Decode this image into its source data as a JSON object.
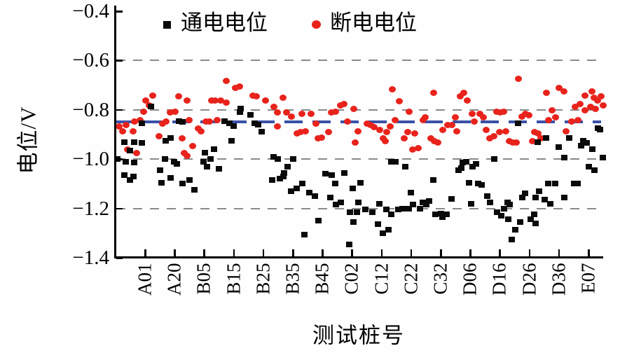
{
  "page": {
    "background": "#fefefe"
  },
  "chart_data": {
    "type": "scatter",
    "title": "",
    "xlabel": "测试桩号",
    "ylabel": "电位/V",
    "ylim": [
      -1.4,
      -0.4
    ],
    "grid": "horizontal-dashed",
    "legend_position": "top-inside",
    "y_ticks": [
      {
        "value": -0.4,
        "label": "−0.4"
      },
      {
        "value": -0.6,
        "label": "−0.6"
      },
      {
        "value": -0.8,
        "label": "−0.8"
      },
      {
        "value": -1.0,
        "label": "−1.0"
      },
      {
        "value": -1.2,
        "label": "−1.2"
      },
      {
        "value": -1.4,
        "label": "−1.4"
      }
    ],
    "x_categories": [
      "A01",
      "A20",
      "B05",
      "B15",
      "B25",
      "B35",
      "B45",
      "C02",
      "C12",
      "C22",
      "C32",
      "D06",
      "D16",
      "D26",
      "D36",
      "E07"
    ],
    "gridlines": {
      "values": [
        -0.6,
        -0.8,
        -1.0,
        -1.2
      ],
      "color": "#8a8a8a",
      "style": "dashed"
    },
    "reference_line": {
      "value": -0.85,
      "color": "#3a51a8",
      "style": "dashed"
    },
    "legend": [
      {
        "label": "通电电位",
        "marker": "square",
        "color": "#0a0a0a"
      },
      {
        "label": "断电电位",
        "marker": "circle",
        "color": "#e8231c"
      }
    ],
    "x_unit_note": "x given in tick-index units, ticks at integers 0..15",
    "series": [
      {
        "name": "通电电位",
        "marker": "square",
        "color": "#0a0a0a",
        "points": [
          [
            -0.93,
            -1.0
          ],
          [
            -0.69,
            -0.93
          ],
          [
            -0.36,
            -0.93
          ],
          [
            -0.1,
            -0.935
          ],
          [
            -0.52,
            -0.965
          ],
          [
            -0.64,
            -1.01
          ],
          [
            -0.36,
            -1.015
          ],
          [
            -0.69,
            -1.065
          ],
          [
            -0.4,
            -1.07
          ],
          [
            -0.52,
            -1.085
          ],
          [
            0.5,
            -1.045
          ],
          [
            0.67,
            -1.0
          ],
          [
            0.98,
            -1.01
          ],
          [
            1.07,
            -1.02
          ],
          [
            0.55,
            -1.095
          ],
          [
            0.86,
            -1.075
          ],
          [
            1.26,
            -1.1
          ],
          [
            1.5,
            -1.085
          ],
          [
            1.67,
            -1.125
          ],
          [
            0.19,
            -0.785
          ],
          [
            -0.1,
            -0.855
          ],
          [
            0.71,
            -0.925
          ],
          [
            0.86,
            -0.915
          ],
          [
            1.14,
            -0.845
          ],
          [
            1.26,
            -0.85
          ],
          [
            2.69,
            -0.845
          ],
          [
            2.86,
            -0.855
          ],
          [
            3.0,
            -0.865
          ],
          [
            3.24,
            -0.795
          ],
          [
            3.21,
            -0.81
          ],
          [
            3.57,
            -0.82
          ],
          [
            3.71,
            -0.855
          ],
          [
            3.83,
            -0.86
          ],
          [
            3.95,
            -0.89
          ],
          [
            2.93,
            -0.925
          ],
          [
            2.33,
            -0.96
          ],
          [
            2.02,
            -0.975
          ],
          [
            2.21,
            -1.0
          ],
          [
            1.98,
            -1.01
          ],
          [
            2.1,
            -1.03
          ],
          [
            2.5,
            -1.04
          ],
          [
            4.36,
            -0.99
          ],
          [
            4.48,
            -1.0
          ],
          [
            4.29,
            -1.085
          ],
          [
            4.55,
            -1.08
          ],
          [
            5.02,
            -1.0
          ],
          [
            4.83,
            -1.03
          ],
          [
            4.71,
            -1.055
          ],
          [
            4.67,
            -1.07
          ],
          [
            5.31,
            -1.1
          ],
          [
            4.95,
            -1.13
          ],
          [
            5.14,
            -1.12
          ],
          [
            5.55,
            -1.135
          ],
          [
            5.74,
            -1.15
          ],
          [
            6.1,
            -1.06
          ],
          [
            6.31,
            -1.065
          ],
          [
            6.26,
            -1.155
          ],
          [
            6.43,
            -1.1
          ],
          [
            6.62,
            -1.175
          ],
          [
            6.45,
            -1.185
          ],
          [
            6.74,
            -1.055
          ],
          [
            6.93,
            -1.215
          ],
          [
            7.17,
            -1.215
          ],
          [
            5.86,
            -1.25
          ],
          [
            7.05,
            -1.255
          ],
          [
            5.38,
            -1.305
          ],
          [
            6.9,
            -1.345
          ],
          [
            7.21,
            -1.175
          ],
          [
            7.02,
            -1.12
          ],
          [
            7.29,
            -1.095
          ],
          [
            7.93,
            -1.18
          ],
          [
            7.69,
            -1.215
          ],
          [
            8.17,
            -1.205
          ],
          [
            7.88,
            -1.265
          ],
          [
            8.24,
            -1.285
          ],
          [
            8.05,
            -1.3
          ],
          [
            8.33,
            -1.225
          ],
          [
            8.57,
            -1.205
          ],
          [
            8.71,
            -1.2
          ],
          [
            8.48,
            -1.01
          ],
          [
            8.33,
            -1.01
          ],
          [
            8.81,
            -1.03
          ],
          [
            9.0,
            -1.135
          ],
          [
            8.93,
            -1.2
          ],
          [
            9.07,
            -1.185
          ],
          [
            9.29,
            -1.2
          ],
          [
            9.4,
            -1.175
          ],
          [
            9.52,
            -1.185
          ],
          [
            9.6,
            -1.17
          ],
          [
            9.76,
            -1.085
          ],
          [
            9.83,
            -1.225
          ],
          [
            10.0,
            -1.22
          ],
          [
            10.07,
            -1.235
          ],
          [
            10.19,
            -1.225
          ],
          [
            7.45,
            -1.205
          ],
          [
            10.74,
            -1.015
          ],
          [
            10.86,
            -1.01
          ],
          [
            10.71,
            -1.035
          ],
          [
            10.6,
            -1.045
          ],
          [
            11.07,
            -1.03
          ],
          [
            11.19,
            -1.02
          ],
          [
            11.81,
            -1.0
          ],
          [
            10.95,
            -1.095
          ],
          [
            11.26,
            -1.1
          ],
          [
            11.38,
            -1.105
          ],
          [
            11.57,
            -1.15
          ],
          [
            11.67,
            -1.175
          ],
          [
            11.02,
            -1.18
          ],
          [
            10.36,
            -1.16
          ],
          [
            12.26,
            -1.175
          ],
          [
            12.33,
            -1.185
          ],
          [
            12.14,
            -1.2
          ],
          [
            11.9,
            -1.215
          ],
          [
            12.05,
            -1.23
          ],
          [
            12.29,
            -1.245
          ],
          [
            12.52,
            -1.285
          ],
          [
            12.4,
            -1.325
          ],
          [
            12.69,
            -1.255
          ],
          [
            12.86,
            -1.14
          ],
          [
            12.76,
            -1.155
          ],
          [
            13.05,
            -1.245
          ],
          [
            12.62,
            -0.855
          ],
          [
            13.57,
            -0.915
          ],
          [
            13.29,
            -0.93
          ],
          [
            14.0,
            -0.95
          ],
          [
            14.36,
            -0.915
          ],
          [
            14.19,
            -0.995
          ],
          [
            14.83,
            -0.925
          ],
          [
            14.95,
            -0.935
          ],
          [
            14.76,
            -0.945
          ],
          [
            15.14,
            -0.96
          ],
          [
            15.31,
            -0.875
          ],
          [
            15.38,
            -0.88
          ],
          [
            15.48,
            -0.995
          ],
          [
            15.02,
            -1.03
          ],
          [
            15.19,
            -1.045
          ],
          [
            13.64,
            -1.1
          ],
          [
            13.88,
            -1.1
          ],
          [
            14.52,
            -1.1
          ],
          [
            14.64,
            -1.1
          ],
          [
            13.33,
            -1.13
          ],
          [
            13.21,
            -1.155
          ],
          [
            13.52,
            -1.165
          ],
          [
            13.71,
            -1.18
          ],
          [
            14.19,
            -1.155
          ],
          [
            13.17,
            -1.225
          ],
          [
            13.21,
            -1.26
          ]
        ]
      },
      {
        "name": "断电电位",
        "marker": "circle",
        "color": "#e8231c",
        "points": [
          [
            0.26,
            -0.74
          ],
          [
            0.02,
            -0.76
          ],
          [
            0.14,
            -0.78
          ],
          [
            -0.05,
            -0.805
          ],
          [
            -0.17,
            -0.84
          ],
          [
            -0.36,
            -0.845
          ],
          [
            -0.64,
            -0.86
          ],
          [
            -0.88,
            -0.865
          ],
          [
            -0.76,
            -0.885
          ],
          [
            -0.4,
            -0.885
          ],
          [
            0.48,
            -0.905
          ],
          [
            0.6,
            -0.855
          ],
          [
            0.71,
            -0.845
          ],
          [
            0.86,
            -0.81
          ],
          [
            1.02,
            -0.805
          ],
          [
            1.14,
            -0.745
          ],
          [
            1.43,
            -0.76
          ],
          [
            1.5,
            -0.84
          ],
          [
            1.62,
            -0.945
          ],
          [
            1.26,
            -0.915
          ],
          [
            1.33,
            -0.975
          ],
          [
            1.43,
            -0.985
          ],
          [
            -0.6,
            -0.96
          ],
          [
            -0.29,
            -0.975
          ],
          [
            2.76,
            -0.68
          ],
          [
            3.05,
            -0.71
          ],
          [
            3.21,
            -0.705
          ],
          [
            2.57,
            -0.76
          ],
          [
            2.74,
            -0.77
          ],
          [
            3.64,
            -0.74
          ],
          [
            3.76,
            -0.745
          ],
          [
            4.07,
            -0.76
          ],
          [
            4.36,
            -0.785
          ],
          [
            4.48,
            -0.81
          ],
          [
            2.26,
            -0.76
          ],
          [
            2.38,
            -0.76
          ],
          [
            2.05,
            -0.845
          ],
          [
            2.17,
            -0.845
          ],
          [
            2.45,
            -0.84
          ],
          [
            1.9,
            -0.885
          ],
          [
            1.81,
            -0.875
          ],
          [
            4.48,
            -0.865
          ],
          [
            4.67,
            -0.75
          ],
          [
            4.79,
            -0.81
          ],
          [
            4.95,
            -0.825
          ],
          [
            5.31,
            -0.815
          ],
          [
            5.62,
            -0.815
          ],
          [
            5.26,
            -0.89
          ],
          [
            5.14,
            -0.895
          ],
          [
            5.43,
            -0.885
          ],
          [
            5.79,
            -0.855
          ],
          [
            5.86,
            -0.915
          ],
          [
            5.98,
            -0.91
          ],
          [
            6.21,
            -0.89
          ],
          [
            6.31,
            -0.81
          ],
          [
            6.45,
            -0.805
          ],
          [
            6.62,
            -0.78
          ],
          [
            6.74,
            -0.775
          ],
          [
            7.05,
            -0.795
          ],
          [
            6.86,
            -0.845
          ],
          [
            7.21,
            -0.885
          ],
          [
            7.1,
            -0.93
          ],
          [
            8.36,
            -0.715
          ],
          [
            8.6,
            -0.765
          ],
          [
            8.93,
            -0.805
          ],
          [
            8.45,
            -0.84
          ],
          [
            8.29,
            -0.865
          ],
          [
            8.17,
            -0.89
          ],
          [
            8.05,
            -0.915
          ],
          [
            8.12,
            -0.925
          ],
          [
            7.93,
            -0.88
          ],
          [
            7.76,
            -0.87
          ],
          [
            7.64,
            -0.86
          ],
          [
            7.52,
            -0.855
          ],
          [
            8.76,
            -0.915
          ],
          [
            8.88,
            -0.89
          ],
          [
            9.12,
            -0.895
          ],
          [
            9.05,
            -0.96
          ],
          [
            9.24,
            -0.955
          ],
          [
            9.48,
            -0.83
          ],
          [
            9.4,
            -0.84
          ],
          [
            9.76,
            -0.73
          ],
          [
            9.67,
            -0.915
          ],
          [
            9.79,
            -0.925
          ],
          [
            9.9,
            -0.93
          ],
          [
            10.07,
            -0.88
          ],
          [
            10.24,
            -0.86
          ],
          [
            12.64,
            -0.673
          ],
          [
            10.79,
            -0.73
          ],
          [
            10.9,
            -0.76
          ],
          [
            10.67,
            -0.745
          ],
          [
            11.07,
            -0.815
          ],
          [
            11.33,
            -0.815
          ],
          [
            11.14,
            -0.845
          ],
          [
            11.45,
            -0.83
          ],
          [
            10.5,
            -0.83
          ],
          [
            10.38,
            -0.86
          ],
          [
            10.55,
            -0.885
          ],
          [
            11.55,
            -0.88
          ],
          [
            11.67,
            -0.915
          ],
          [
            11.79,
            -0.905
          ],
          [
            11.9,
            -0.805
          ],
          [
            12.02,
            -0.81
          ],
          [
            12.14,
            -0.805
          ],
          [
            11.98,
            -0.89
          ],
          [
            12.21,
            -0.885
          ],
          [
            12.33,
            -0.925
          ],
          [
            12.45,
            -0.93
          ],
          [
            12.57,
            -0.93
          ],
          [
            12.86,
            -0.815
          ],
          [
            12.98,
            -0.82
          ],
          [
            13.1,
            -0.925
          ],
          [
            12.76,
            -0.825
          ],
          [
            13.57,
            -0.73
          ],
          [
            14.0,
            -0.71
          ],
          [
            14.17,
            -0.725
          ],
          [
            13.76,
            -0.8
          ],
          [
            13.88,
            -0.83
          ],
          [
            13.64,
            -0.84
          ],
          [
            14.43,
            -0.845
          ],
          [
            14.64,
            -0.84
          ],
          [
            14.24,
            -0.885
          ],
          [
            14.55,
            -0.785
          ],
          [
            14.71,
            -0.775
          ],
          [
            14.88,
            -0.74
          ],
          [
            15.12,
            -0.725
          ],
          [
            15.19,
            -0.75
          ],
          [
            15.31,
            -0.76
          ],
          [
            15.07,
            -0.785
          ],
          [
            15.24,
            -0.795
          ],
          [
            14.88,
            -0.8
          ],
          [
            15.43,
            -0.745
          ],
          [
            15.5,
            -0.78
          ],
          [
            13.17,
            -0.89
          ],
          [
            13.29,
            -0.895
          ],
          [
            13.4,
            -0.915
          ]
        ]
      }
    ]
  }
}
